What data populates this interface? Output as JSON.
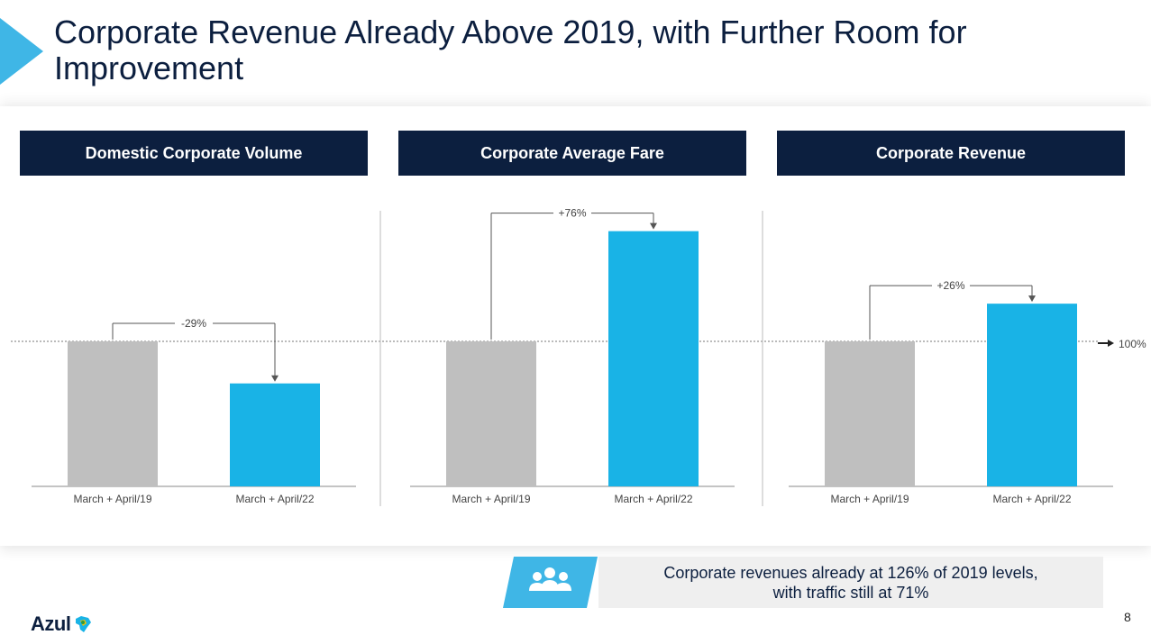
{
  "title": "Corporate Revenue Already Above 2019, with Further Room for Improvement",
  "panels": [
    {
      "header": "Domestic Corporate Volume"
    },
    {
      "header": "Corporate Average Fare"
    },
    {
      "header": "Corporate Revenue"
    }
  ],
  "chart_data": [
    {
      "type": "bar",
      "title": "Domestic Corporate Volume",
      "categories": [
        "March + April/19",
        "March + April/22"
      ],
      "values": [
        100,
        71
      ],
      "change_label": "-29%",
      "colors": [
        "#bfbfbf",
        "#19b3e6"
      ]
    },
    {
      "type": "bar",
      "title": "Corporate Average Fare",
      "categories": [
        "March + April/19",
        "March + April/22"
      ],
      "values": [
        100,
        176
      ],
      "change_label": "+76%",
      "colors": [
        "#bfbfbf",
        "#19b3e6"
      ]
    },
    {
      "type": "bar",
      "title": "Corporate Revenue",
      "categories": [
        "March + April/19",
        "March + April/22"
      ],
      "values": [
        100,
        126
      ],
      "change_label": "+26%",
      "colors": [
        "#bfbfbf",
        "#19b3e6"
      ]
    }
  ],
  "reference_line": {
    "label": "100%",
    "value": 100
  },
  "callout": {
    "icon": "people-group-icon",
    "line1": "Corporate revenues already at 126% of 2019 levels,",
    "line2": "with traffic still at 71%"
  },
  "logo": {
    "text": "Azul",
    "icon": "brazil-map-icon"
  },
  "page_number": "8",
  "colors": {
    "navy": "#0c1f3f",
    "accent": "#19b3e6",
    "baseline_bar": "#bfbfbf",
    "callout_bg": "#efefef"
  }
}
